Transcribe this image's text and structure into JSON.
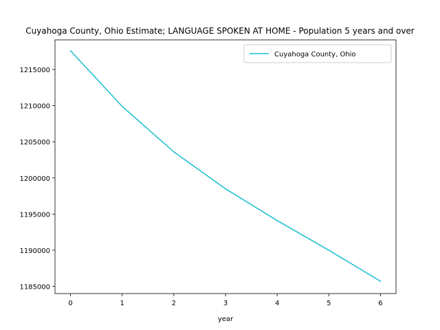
{
  "chart_data": {
    "type": "line",
    "title": "Cuyahoga County, Ohio Estimate; LANGUAGE SPOKEN AT HOME - Population 5 years and over",
    "xlabel": "year",
    "ylabel": "",
    "x": [
      0,
      1,
      2,
      3,
      4,
      5,
      6
    ],
    "series": [
      {
        "name": "Cuyahoga County, Ohio",
        "color": "#17becf",
        "values": [
          1217600,
          1209900,
          1203600,
          1198500,
          1194100,
          1190000,
          1185700
        ]
      }
    ],
    "xlim": [
      -0.3,
      6.3
    ],
    "ylim": [
      1184000,
      1219100
    ],
    "x_ticks": [
      0,
      1,
      2,
      3,
      4,
      5,
      6
    ],
    "y_ticks": [
      1185000,
      1190000,
      1195000,
      1200000,
      1205000,
      1210000,
      1215000
    ],
    "legend_position": "upper right",
    "grid": false
  }
}
